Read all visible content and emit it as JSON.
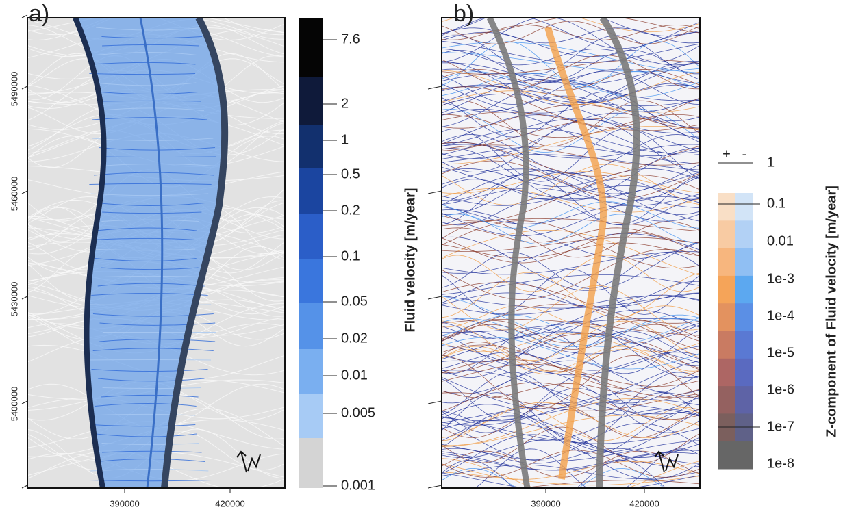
{
  "panels": [
    {
      "label": "a)",
      "x_ticks": [
        "390000",
        "420000"
      ],
      "y_ticks": [
        "5490000",
        "5460000",
        "5430000",
        "5400000"
      ],
      "colorbar": {
        "title": "Fluid velocity [m/year]",
        "labels": [
          "7.6",
          "2",
          "1",
          "0.5",
          "0.2",
          "0.1",
          "0.05",
          "0.02",
          "0.01",
          "0.005",
          "0.001"
        ],
        "colors": [
          "#050505",
          "#0f1a3a",
          "#12306e",
          "#1b45a0",
          "#2b5ec8",
          "#3a76dd",
          "#5592e8",
          "#7aaff0",
          "#a7cbf5",
          "#d4d4d4"
        ]
      }
    },
    {
      "label": "b)",
      "x_ticks": [
        "390000",
        "420000"
      ],
      "colorbar": {
        "title": "Z-component of Fluid velocity [m/year]",
        "signs": [
          "+",
          "-"
        ],
        "labels": [
          "1",
          "0.1",
          "0.01",
          "1e-3",
          "1e-4",
          "1e-5",
          "1e-6",
          "1e-7",
          "1e-8"
        ],
        "colors_positive": [
          "#f9dfc6",
          "#f8cba3",
          "#f7b67e",
          "#f5a459",
          "#e3925f",
          "#c97b62",
          "#ad6664",
          "#946160",
          "#7b5f5d",
          "#666666"
        ],
        "colors_negative": [
          "#d2e4f7",
          "#b2d1f5",
          "#90bff3",
          "#5ca8f0",
          "#5b8fe5",
          "#5a79d3",
          "#5a6ac0",
          "#5e63a6",
          "#5f6188",
          "#666666"
        ]
      }
    }
  ]
}
